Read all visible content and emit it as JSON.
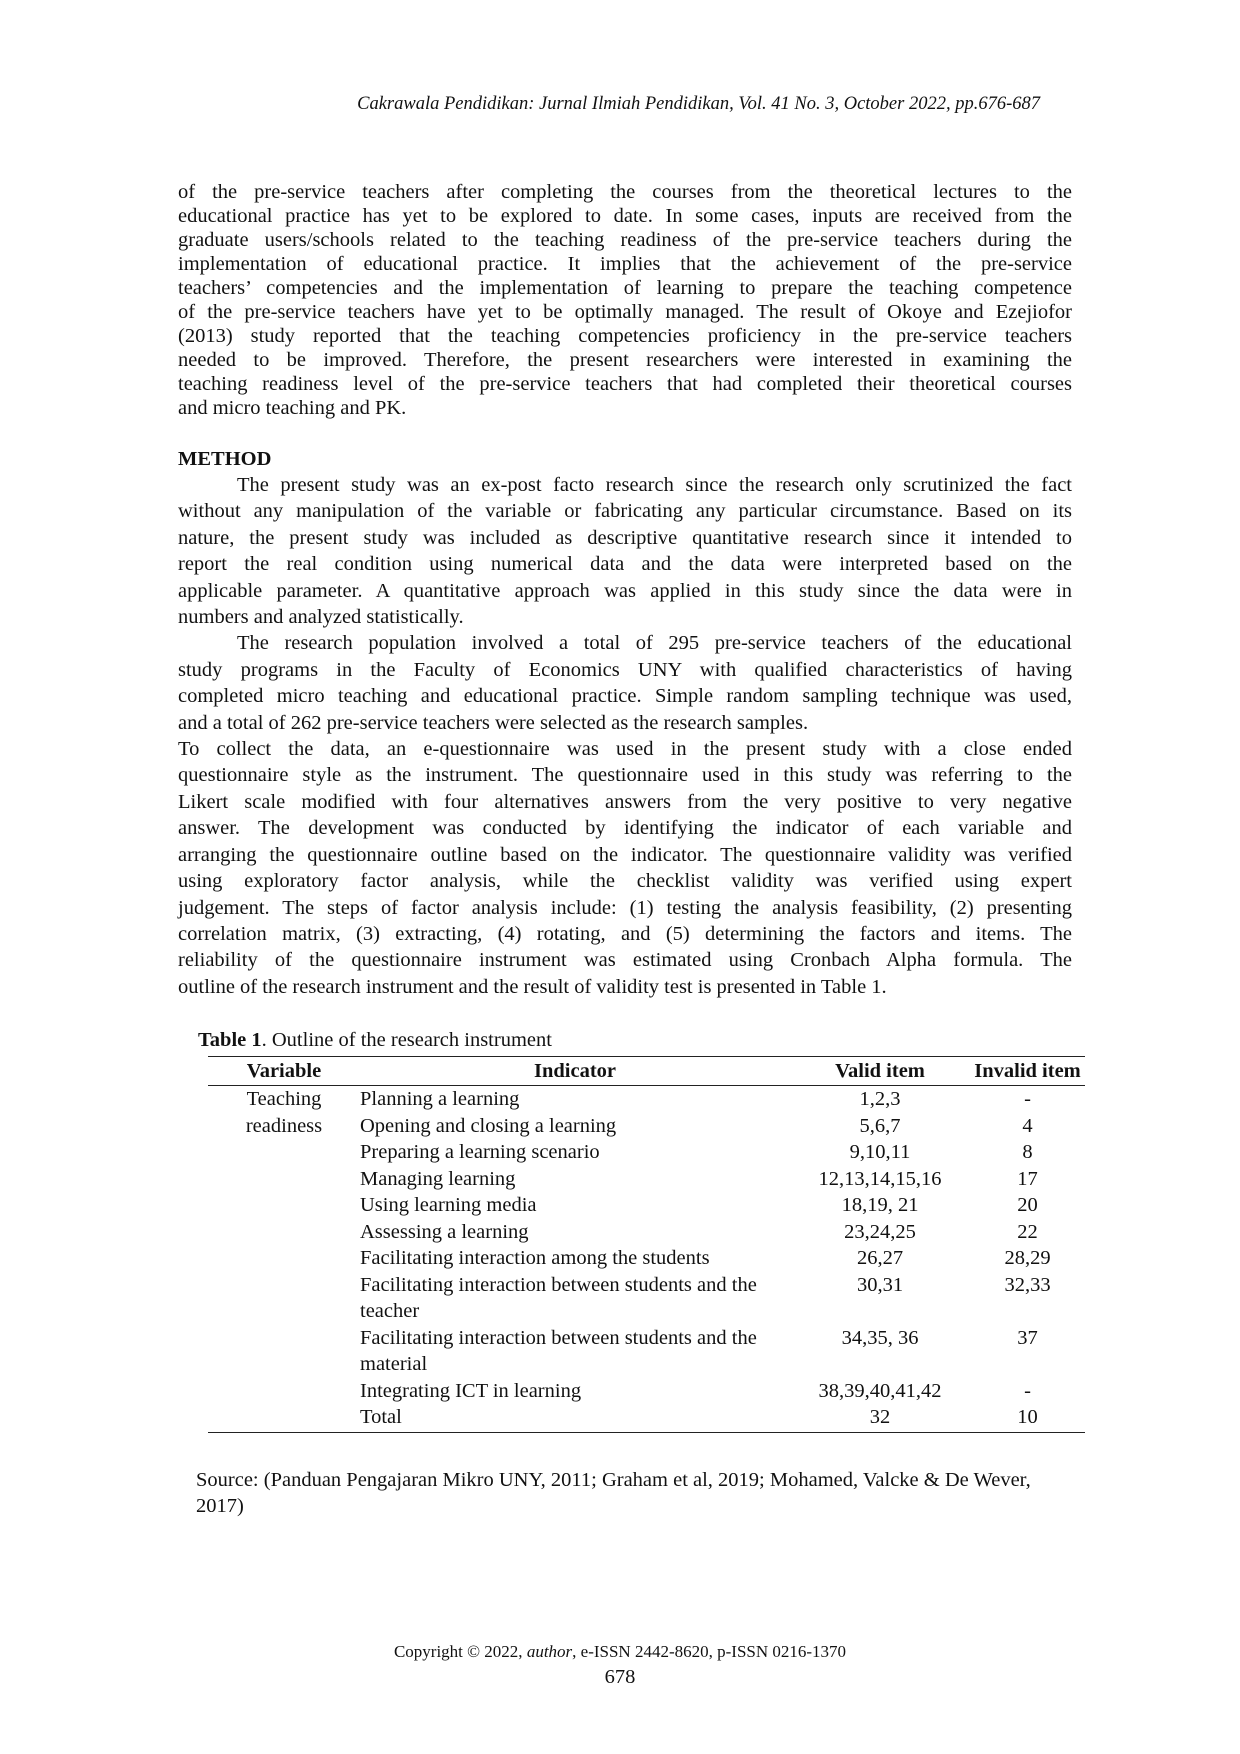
{
  "header": "Cakrawala Pendidikan: Jurnal Ilmiah Pendidikan, Vol. 41 No. 3, October 2022, pp.676-687",
  "intro_lines": [
    "of the pre-service teachers after completing the courses from the theoretical lectures to the",
    "educational practice has yet to be explored to date. In some cases, inputs are received from the",
    "graduate users/schools related to the teaching readiness of the pre-service teachers during the",
    "implementation of educational practice. It implies that the achievement of the pre-service",
    "teachers’ competencies and the implementation of learning to prepare the teaching competence",
    "of the pre-service teachers have yet to be optimally managed. The result of Okoye and Ezejiofor",
    "(2013) study reported that the teaching competencies proficiency in the pre-service teachers",
    "needed to be improved. Therefore, the present researchers were interested in examining the",
    "teaching readiness level of the pre-service teachers that had completed their theoretical courses",
    "and micro teaching and PK."
  ],
  "method": {
    "heading": "METHOD",
    "para1": [
      "The present study was an ex-post facto research since the research only scrutinized the fact",
      "without any manipulation of the variable or fabricating any particular circumstance. Based on its",
      "nature, the present study was included as descriptive quantitative research since it intended to",
      "report the real condition using numerical data and the data were interpreted based on the",
      "applicable parameter. A quantitative approach was applied in this study since the data were in",
      "numbers and analyzed statistically."
    ],
    "para2": [
      "The research population involved a total of 295 pre-service teachers of the educational",
      "study programs in the Faculty of Economics UNY with qualified characteristics of having",
      "completed micro teaching and educational practice. Simple random sampling technique was used,",
      "and a total of 262 pre-service teachers were selected as the research samples."
    ],
    "para3": [
      "To collect the data, an e-questionnaire was used in the present study with a close ended",
      "questionnaire style as the instrument. The questionnaire used in this study was referring to the",
      "Likert scale modified with four alternatives answers from the very positive to very negative",
      "answer. The development was conducted by identifying the indicator of each variable and",
      "arranging the questionnaire outline based on the indicator. The questionnaire validity was verified",
      "using exploratory factor analysis, while the checklist validity was verified using expert",
      "judgement. The steps of factor analysis include: (1) testing the analysis feasibility, (2) presenting",
      "correlation matrix, (3) extracting, (4) rotating, and (5) determining the factors and items. The",
      "reliability of the questionnaire instrument was estimated using Cronbach Alpha formula. The",
      "outline of the research instrument and the result of validity test is presented in Table 1."
    ]
  },
  "table": {
    "caption_label": "Table 1",
    "caption_text": ". Outline of the research instrument",
    "headers": [
      "Variable",
      "Indicator",
      "Valid item",
      "Invalid item"
    ],
    "variable": [
      "Teaching",
      "readiness"
    ],
    "rows": [
      {
        "indicator": "Planning a learning",
        "valid": "1,2,3",
        "invalid": "-"
      },
      {
        "indicator": "Opening and closing a learning",
        "valid": "5,6,7",
        "invalid": "4"
      },
      {
        "indicator": "Preparing a learning scenario",
        "valid": "9,10,11",
        "invalid": "8"
      },
      {
        "indicator": "Managing learning",
        "valid": "12,13,14,15,16",
        "invalid": "17"
      },
      {
        "indicator": "Using learning media",
        "valid": "18,19, 21",
        "invalid": "20"
      },
      {
        "indicator": "Assessing a learning",
        "valid": "23,24,25",
        "invalid": "22"
      },
      {
        "indicator": "Facilitating interaction among the students",
        "valid": "26,27",
        "invalid": "28,29"
      },
      {
        "indicator": "Facilitating interaction between students and the teacher",
        "valid": "30,31",
        "invalid": "32,33"
      },
      {
        "indicator": "Facilitating interaction between students and the material",
        "valid": "34,35, 36",
        "invalid": "37"
      },
      {
        "indicator": "Integrating ICT in learning",
        "valid": "38,39,40,41,42",
        "invalid": "-"
      },
      {
        "indicator": "Total",
        "valid": "32",
        "invalid": "10"
      }
    ],
    "source": "Source: (Panduan Pengajaran Mikro UNY, 2011; Graham et al, 2019; Mohamed, Valcke & De Wever, 2017)"
  },
  "footer": {
    "copyright_prefix": "Copyright © 2022, ",
    "copyright_author": "author",
    "copyright_suffix": ", e-ISSN 2442-8620, p-ISSN 0216-1370",
    "page_number": "678"
  }
}
